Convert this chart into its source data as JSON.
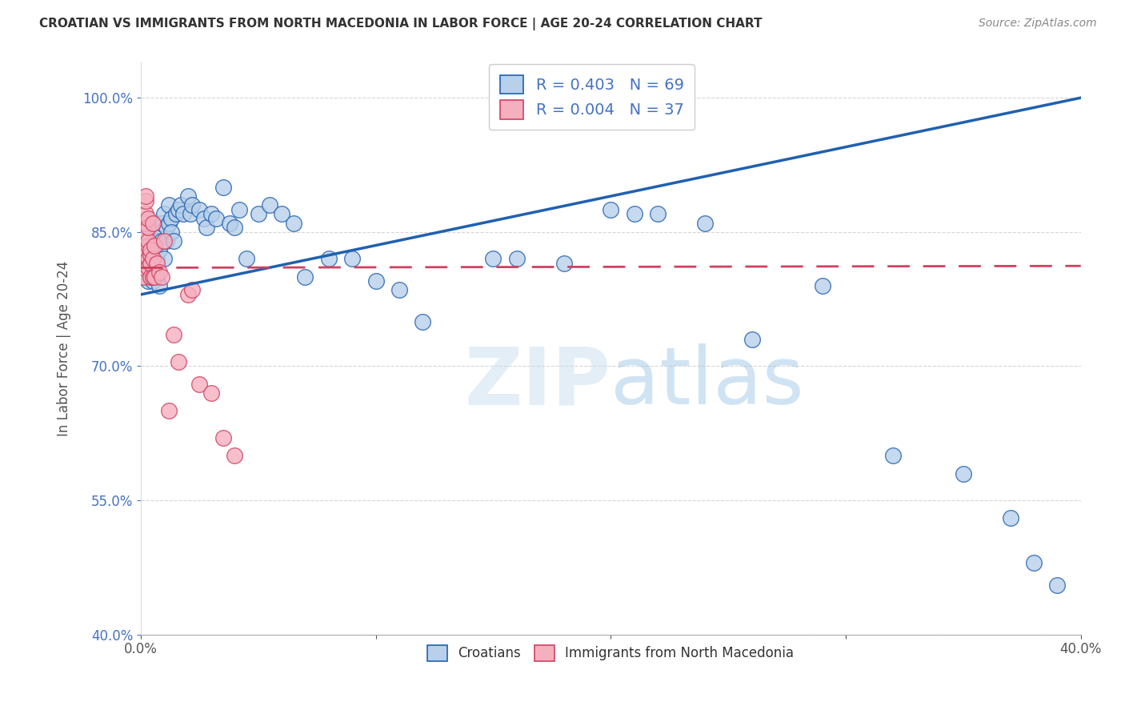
{
  "title": "CROATIAN VS IMMIGRANTS FROM NORTH MACEDONIA IN LABOR FORCE | AGE 20-24 CORRELATION CHART",
  "source": "Source: ZipAtlas.com",
  "ylabel": "In Labor Force | Age 20-24",
  "xlim": [
    0.0,
    0.4
  ],
  "ylim": [
    0.4,
    1.04
  ],
  "yticks": [
    0.4,
    0.55,
    0.7,
    0.85,
    1.0
  ],
  "ytick_labels": [
    "40.0%",
    "55.0%",
    "70.0%",
    "85.0%",
    "100.0%"
  ],
  "xticks": [
    0.0,
    0.1,
    0.2,
    0.3,
    0.4
  ],
  "xtick_labels": [
    "0.0%",
    "",
    "",
    "",
    "40.0%"
  ],
  "blue_R": "0.403",
  "blue_N": "69",
  "pink_R": "0.004",
  "pink_N": "37",
  "blue_color": "#b8d0ea",
  "pink_color": "#f5b0c0",
  "blue_line_color": "#2060b0",
  "pink_line_color": "#d04060",
  "watermark_zip": "ZIP",
  "watermark_atlas": "atlas",
  "legend_blue_label": "Croatians",
  "legend_pink_label": "Immigrants from North Macedonia",
  "blue_x": [
    0.001,
    0.002,
    0.003,
    0.003,
    0.004,
    0.004,
    0.005,
    0.005,
    0.005,
    0.006,
    0.006,
    0.007,
    0.007,
    0.007,
    0.008,
    0.008,
    0.008,
    0.009,
    0.009,
    0.01,
    0.01,
    0.011,
    0.011,
    0.012,
    0.012,
    0.013,
    0.013,
    0.014,
    0.015,
    0.016,
    0.017,
    0.018,
    0.02,
    0.021,
    0.022,
    0.025,
    0.027,
    0.028,
    0.03,
    0.032,
    0.035,
    0.038,
    0.04,
    0.042,
    0.045,
    0.05,
    0.055,
    0.06,
    0.065,
    0.07,
    0.08,
    0.09,
    0.1,
    0.11,
    0.12,
    0.15,
    0.16,
    0.18,
    0.2,
    0.21,
    0.22,
    0.24,
    0.26,
    0.29,
    0.32,
    0.35,
    0.37,
    0.38,
    0.39
  ],
  "blue_y": [
    0.8,
    0.805,
    0.81,
    0.795,
    0.8,
    0.82,
    0.81,
    0.8,
    0.795,
    0.83,
    0.815,
    0.84,
    0.82,
    0.8,
    0.85,
    0.83,
    0.79,
    0.86,
    0.84,
    0.87,
    0.82,
    0.855,
    0.84,
    0.88,
    0.86,
    0.865,
    0.85,
    0.84,
    0.87,
    0.875,
    0.88,
    0.87,
    0.89,
    0.87,
    0.88,
    0.875,
    0.865,
    0.855,
    0.87,
    0.865,
    0.9,
    0.86,
    0.855,
    0.875,
    0.82,
    0.87,
    0.88,
    0.87,
    0.86,
    0.8,
    0.82,
    0.82,
    0.795,
    0.785,
    0.75,
    0.82,
    0.82,
    0.815,
    0.875,
    0.87,
    0.87,
    0.86,
    0.73,
    0.79,
    0.6,
    0.58,
    0.53,
    0.48,
    0.455
  ],
  "pink_x": [
    0.001,
    0.001,
    0.002,
    0.002,
    0.002,
    0.002,
    0.002,
    0.002,
    0.002,
    0.003,
    0.003,
    0.003,
    0.003,
    0.003,
    0.003,
    0.004,
    0.004,
    0.004,
    0.004,
    0.005,
    0.005,
    0.005,
    0.006,
    0.006,
    0.007,
    0.008,
    0.009,
    0.01,
    0.012,
    0.014,
    0.016,
    0.02,
    0.022,
    0.025,
    0.03,
    0.035,
    0.04
  ],
  "pink_y": [
    0.8,
    0.81,
    0.82,
    0.83,
    0.85,
    0.86,
    0.87,
    0.885,
    0.89,
    0.82,
    0.835,
    0.84,
    0.855,
    0.865,
    0.81,
    0.8,
    0.815,
    0.825,
    0.83,
    0.8,
    0.82,
    0.86,
    0.835,
    0.8,
    0.815,
    0.805,
    0.8,
    0.84,
    0.65,
    0.735,
    0.705,
    0.78,
    0.785,
    0.68,
    0.67,
    0.62,
    0.6
  ],
  "blue_line_x0": 0.0,
  "blue_line_x1": 0.4,
  "blue_line_y0": 0.78,
  "blue_line_y1": 1.0,
  "pink_line_x0": 0.0,
  "pink_line_x1": 0.4,
  "pink_line_y0": 0.81,
  "pink_line_y1": 0.812
}
